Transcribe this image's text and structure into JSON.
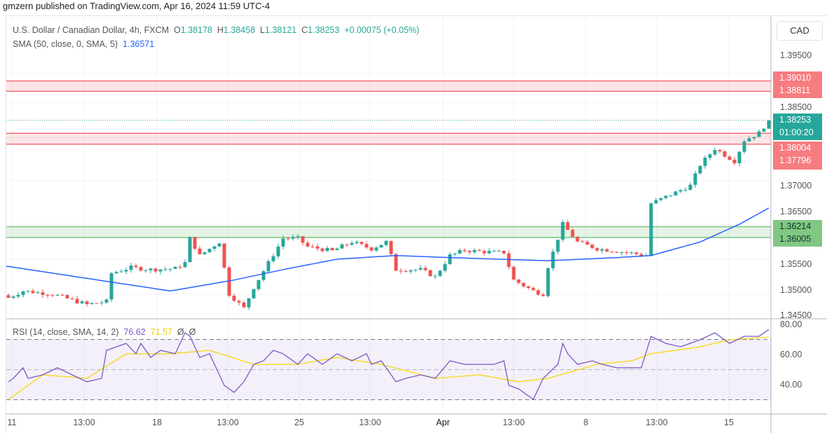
{
  "header": {
    "published": "gmzern published on TradingView.com, Apr 16, 2024 11:59 UTC-4"
  },
  "legend": {
    "symbol": "U.S. Dollar / Canadian Dollar, 4h, FXCM",
    "o_label": "O",
    "open": "1.38178",
    "h_label": "H",
    "high": "1.38458",
    "l_label": "L",
    "low": "1.38121",
    "c_label": "C",
    "close": "1.38253",
    "change": "+0.00075 (+0.05%)",
    "sma_label": "SMA (50, close, 0, SMA, 5)",
    "sma_value": "1.36571"
  },
  "rsi_legend": {
    "label": "RSI (14, close, SMA, 14, 2)",
    "rsi": "76.62",
    "ma": "71.57",
    "x1": "Ø",
    "x2": "Ø"
  },
  "axis": {
    "currency": "CAD",
    "price_ticks": [
      "1.39500",
      "1.38500",
      "1.37000",
      "1.36500",
      "1.35500",
      "1.35000",
      "1.34500"
    ],
    "rsi_ticks": [
      "80.00",
      "60.00",
      "40.00"
    ],
    "time_ticks": [
      "11",
      "13:00",
      "18",
      "13:00",
      "25",
      "13:00",
      "Apr",
      "13:00",
      "8",
      "13:00",
      "15"
    ]
  },
  "badges": {
    "zone1_top": "1.39010",
    "zone1_bottom": "1.38811",
    "last_price": "1.38253",
    "countdown": "01:00:20",
    "zone2_top": "1.38004",
    "zone2_bottom": "1.37796",
    "zone3_top": "1.36214",
    "zone3_bottom": "1.36005"
  },
  "colors": {
    "up": "#26a69a",
    "down": "#ef5350",
    "sma": "#2962ff",
    "rsi": "#7e57c2",
    "rsi_ma": "#f5d90a",
    "zone_red": "#f77c80",
    "zone_green": "#81c784"
  },
  "chart_data": {
    "type": "candlestick",
    "timeframe": "4h",
    "price_range": [
      1.345,
      1.395
    ],
    "zones": [
      {
        "top": 1.3901,
        "bottom": 1.38811,
        "color": "red"
      },
      {
        "top": 1.38004,
        "bottom": 1.37796,
        "color": "red"
      },
      {
        "top": 1.36214,
        "bottom": 1.36005,
        "color": "green"
      }
    ],
    "close_path": [
      [
        0,
        1.3485
      ],
      [
        3,
        1.3498
      ],
      [
        9,
        1.3492
      ],
      [
        16,
        1.3472
      ],
      [
        20,
        1.3478
      ],
      [
        21,
        1.3532
      ],
      [
        25,
        1.3543
      ],
      [
        29,
        1.3539
      ],
      [
        34,
        1.3541
      ],
      [
        36,
        1.3552
      ],
      [
        37,
        1.3599
      ],
      [
        39,
        1.3566
      ],
      [
        43,
        1.3592
      ],
      [
        45,
        1.3492
      ],
      [
        48,
        1.3465
      ],
      [
        50,
        1.3505
      ],
      [
        53,
        1.3552
      ],
      [
        56,
        1.3599
      ],
      [
        59,
        1.3599
      ],
      [
        61,
        1.3583
      ],
      [
        66,
        1.3575
      ],
      [
        70,
        1.3592
      ],
      [
        74,
        1.3579
      ],
      [
        77,
        1.3592
      ],
      [
        79,
        1.3539
      ],
      [
        84,
        1.3539
      ],
      [
        87,
        1.3525
      ],
      [
        90,
        1.3566
      ],
      [
        93,
        1.3576
      ],
      [
        99,
        1.3572
      ],
      [
        101,
        1.3572
      ],
      [
        103,
        1.3519
      ],
      [
        107,
        1.3498
      ],
      [
        109,
        1.3492
      ],
      [
        110,
        1.3545
      ],
      [
        113,
        1.3626
      ],
      [
        116,
        1.3592
      ],
      [
        120,
        1.3579
      ],
      [
        126,
        1.3572
      ],
      [
        130,
        1.3566
      ],
      [
        131,
        1.3666
      ],
      [
        136,
        1.3687
      ],
      [
        139,
        1.37
      ],
      [
        141,
        1.374
      ],
      [
        144,
        1.3771
      ],
      [
        148,
        1.3747
      ],
      [
        150,
        1.3787
      ],
      [
        153,
        1.3801
      ],
      [
        155,
        1.38253
      ]
    ],
    "sma_path": [
      [
        0,
        1.3545
      ],
      [
        33,
        1.3498
      ],
      [
        46,
        1.3519
      ],
      [
        56,
        1.3539
      ],
      [
        67,
        1.3559
      ],
      [
        79,
        1.3566
      ],
      [
        90,
        1.3562
      ],
      [
        110,
        1.3556
      ],
      [
        124,
        1.3562
      ],
      [
        131,
        1.3566
      ],
      [
        141,
        1.3592
      ],
      [
        149,
        1.3626
      ],
      [
        155,
        1.36571
      ]
    ],
    "rsi_range": [
      22,
      84
    ],
    "rsi_levels": [
      70,
      50,
      30
    ],
    "rsi_path": [
      [
        0,
        41.9
      ],
      [
        1,
        44.2
      ],
      [
        3,
        51.2
      ],
      [
        4,
        44.2
      ],
      [
        7,
        46.5
      ],
      [
        10,
        51.2
      ],
      [
        13,
        46.5
      ],
      [
        16,
        41.9
      ],
      [
        19,
        44.2
      ],
      [
        20,
        62.8
      ],
      [
        22,
        65.1
      ],
      [
        24,
        67.4
      ],
      [
        26,
        60.5
      ],
      [
        27,
        67.4
      ],
      [
        29,
        58.1
      ],
      [
        31,
        62.8
      ],
      [
        34,
        60.5
      ],
      [
        36,
        74.4
      ],
      [
        37,
        72.1
      ],
      [
        39,
        58.1
      ],
      [
        41,
        60.5
      ],
      [
        44,
        39.5
      ],
      [
        46,
        34.9
      ],
      [
        48,
        41.9
      ],
      [
        50,
        53.5
      ],
      [
        52,
        55.8
      ],
      [
        54,
        62.8
      ],
      [
        56,
        60.5
      ],
      [
        59,
        53.5
      ],
      [
        61,
        60.5
      ],
      [
        64,
        53.5
      ],
      [
        67,
        60.5
      ],
      [
        70,
        55.8
      ],
      [
        73,
        60.5
      ],
      [
        74,
        53.5
      ],
      [
        76,
        55.8
      ],
      [
        79,
        41.9
      ],
      [
        81,
        44.2
      ],
      [
        84,
        46.5
      ],
      [
        87,
        44.2
      ],
      [
        90,
        55.8
      ],
      [
        93,
        53.5
      ],
      [
        96,
        53.5
      ],
      [
        99,
        53.5
      ],
      [
        101,
        55.8
      ],
      [
        102,
        39.5
      ],
      [
        104,
        37.2
      ],
      [
        107,
        30.2
      ],
      [
        109,
        44.2
      ],
      [
        112,
        53.5
      ],
      [
        113,
        67.4
      ],
      [
        114,
        60.5
      ],
      [
        116,
        53.5
      ],
      [
        119,
        55.8
      ],
      [
        121,
        53.5
      ],
      [
        124,
        51.2
      ],
      [
        127,
        51.2
      ],
      [
        129,
        51.2
      ],
      [
        131,
        72.1
      ],
      [
        134,
        67.4
      ],
      [
        137,
        65.1
      ],
      [
        141,
        69.8
      ],
      [
        144,
        74.4
      ],
      [
        147,
        67.4
      ],
      [
        150,
        72.1
      ],
      [
        153,
        72.1
      ],
      [
        155,
        76.62
      ]
    ],
    "rsi_ma_path": [
      [
        0,
        30.2
      ],
      [
        7,
        46.5
      ],
      [
        16,
        44.2
      ],
      [
        24,
        60.5
      ],
      [
        33,
        60.5
      ],
      [
        41,
        62.8
      ],
      [
        50,
        53.5
      ],
      [
        59,
        53.5
      ],
      [
        67,
        58.1
      ],
      [
        76,
        53.5
      ],
      [
        87,
        44.2
      ],
      [
        96,
        46.5
      ],
      [
        104,
        41.9
      ],
      [
        110,
        44.2
      ],
      [
        120,
        53.5
      ],
      [
        127,
        55.8
      ],
      [
        131,
        60.5
      ],
      [
        141,
        65.1
      ],
      [
        147,
        69.8
      ],
      [
        155,
        71.57
      ]
    ]
  }
}
